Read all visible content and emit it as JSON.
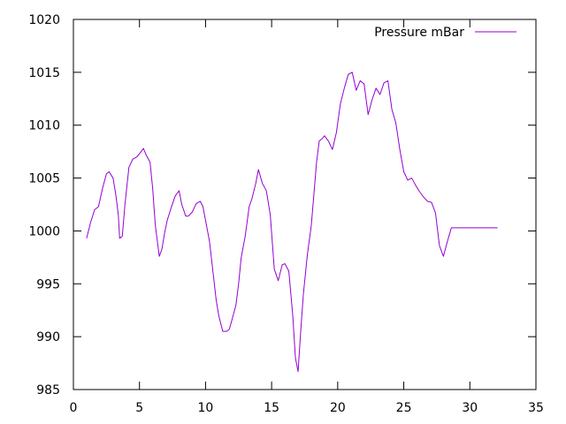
{
  "chart_data": {
    "type": "line",
    "title": "",
    "xlabel": "",
    "ylabel": "",
    "xlim": [
      0,
      35
    ],
    "ylim": [
      985,
      1020
    ],
    "xticks": [
      "0",
      "5",
      "10",
      "15",
      "20",
      "25",
      "30",
      "35"
    ],
    "yticks": [
      "985",
      "990",
      "995",
      "1000",
      "1005",
      "1010",
      "1015",
      "1020"
    ],
    "grid": false,
    "legend_position": "top-right",
    "series": [
      {
        "name": "Pressure mBar",
        "color": "#9400d3",
        "x": [
          1.0,
          1.3,
          1.6,
          1.9,
          2.2,
          2.5,
          2.7,
          3.0,
          3.2,
          3.4,
          3.5,
          3.7,
          3.9,
          4.2,
          4.5,
          4.8,
          5.0,
          5.3,
          5.5,
          5.8,
          6.0,
          6.2,
          6.5,
          6.7,
          6.9,
          7.1,
          7.4,
          7.7,
          8.0,
          8.2,
          8.5,
          8.7,
          9.0,
          9.3,
          9.6,
          9.8,
          10.0,
          10.3,
          10.5,
          10.8,
          11.0,
          11.3,
          11.6,
          11.8,
          12.0,
          12.3,
          12.5,
          12.7,
          13.0,
          13.3,
          13.5,
          13.8,
          14.0,
          14.3,
          14.6,
          14.9,
          15.2,
          15.5,
          15.8,
          16.0,
          16.3,
          16.6,
          16.8,
          17.0,
          17.2,
          17.4,
          17.7,
          18.0,
          18.2,
          18.4,
          18.6,
          18.8,
          19.0,
          19.3,
          19.6,
          19.9,
          20.2,
          20.5,
          20.8,
          21.1,
          21.4,
          21.7,
          22.0,
          22.3,
          22.6,
          22.9,
          23.2,
          23.5,
          23.8,
          24.1,
          24.4,
          24.7,
          25.0,
          25.3,
          25.6,
          25.9,
          26.2,
          26.5,
          26.8,
          27.1,
          27.4,
          27.7,
          28.0,
          28.3,
          28.6,
          28.9,
          29.2,
          29.5,
          29.8,
          30.1,
          30.4,
          30.7,
          31.0,
          31.3,
          31.6,
          31.8,
          32.0,
          32.1
        ],
        "y": [
          999.3,
          1000.8,
          1002.0,
          1002.3,
          1004.0,
          1005.4,
          1005.6,
          1005.0,
          1003.5,
          1001.5,
          999.3,
          999.5,
          1002.5,
          1006.0,
          1006.8,
          1007.0,
          1007.3,
          1007.8,
          1007.2,
          1006.5,
          1004.0,
          1000.5,
          997.6,
          998.3,
          999.8,
          1001.0,
          1002.2,
          1003.3,
          1003.8,
          1002.5,
          1001.4,
          1001.4,
          1001.8,
          1002.6,
          1002.8,
          1002.3,
          1001.0,
          999.0,
          996.8,
          993.5,
          992.0,
          990.5,
          990.5,
          990.7,
          991.6,
          993.0,
          995.0,
          997.5,
          999.5,
          1002.3,
          1003.0,
          1004.5,
          1005.8,
          1004.5,
          1003.8,
          1001.5,
          996.4,
          995.3,
          996.8,
          996.9,
          996.2,
          992.0,
          988.0,
          986.7,
          990.5,
          994.0,
          997.7,
          1000.5,
          1003.5,
          1006.5,
          1008.5,
          1008.7,
          1009.0,
          1008.5,
          1007.7,
          1009.3,
          1012.0,
          1013.5,
          1014.8,
          1015.0,
          1013.3,
          1014.2,
          1013.9,
          1011.0,
          1012.4,
          1013.5,
          1012.9,
          1014.0,
          1014.2,
          1011.5,
          1010.2,
          1007.7,
          1005.6,
          1004.8,
          1005.0,
          1004.3,
          1003.7,
          1003.2,
          1002.8,
          1002.7,
          1001.7,
          998.6,
          997.6,
          999.0,
          1000.3,
          1000.3,
          1000.3,
          1000.3,
          1000.3,
          1000.3,
          1000.3,
          1000.3,
          1000.3,
          1000.3,
          1000.3,
          1000.3,
          1000.3,
          1000.3
        ]
      }
    ]
  }
}
